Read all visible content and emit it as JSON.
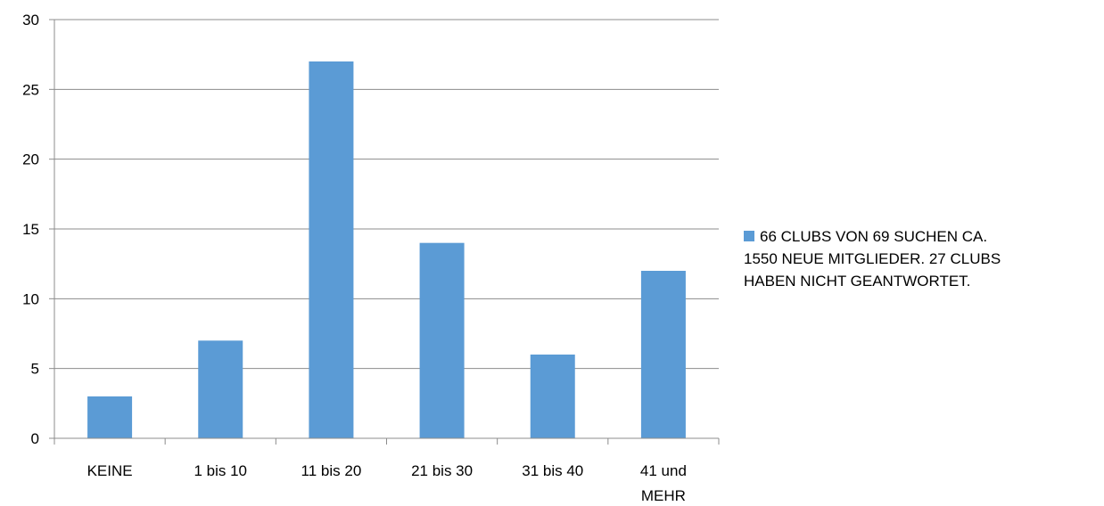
{
  "chart_data": {
    "type": "bar",
    "categories": [
      "KEINE",
      "1 bis 10",
      "11 bis 20",
      "21 bis 30",
      "31 bis 40",
      "41 und MEHR"
    ],
    "category_lines": [
      [
        "KEINE"
      ],
      [
        "1 bis 10"
      ],
      [
        "11 bis 20"
      ],
      [
        "21 bis 30"
      ],
      [
        "31 bis 40"
      ],
      [
        "41 und",
        "MEHR"
      ]
    ],
    "series": [
      {
        "name": "66 CLUBS VON 69 SUCHEN CA. 1550 NEUE MITGLIEDER. 27 CLUBS HABEN NICHT GEANTWORTET.",
        "values": [
          3,
          7,
          27,
          14,
          6,
          12
        ],
        "color": "#5b9bd5"
      }
    ],
    "ylim": [
      0,
      30
    ],
    "yticks": [
      0,
      5,
      10,
      15,
      20,
      25,
      30
    ],
    "grid": true,
    "legend_position": "right"
  },
  "legend": {
    "lines": [
      "66 CLUBS VON 69 SUCHEN CA.",
      "1550 NEUE MITGLIEDER. 27 CLUBS",
      "HABEN NICHT GEANTWORTET."
    ]
  }
}
